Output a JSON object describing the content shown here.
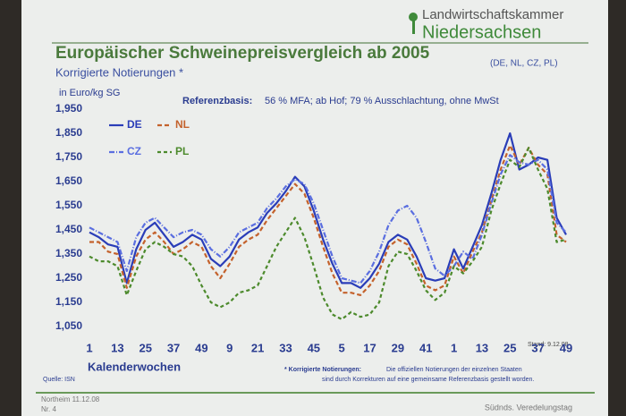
{
  "slide": {
    "logo_line1": "Landwirtschaftskammer",
    "logo_line2": "Niedersachsen",
    "reference_label": "Referenzbasis:",
    "reference_text": "56 % MFA; ab Hof; 79 % Ausschlachtung, ohne MwSt",
    "stand": "Stand: 9.12.08",
    "source": "Quelle: ISN",
    "footnote_label": "* Korrigierte Notierungen:",
    "footnote_line1": "Die offiziellen Notierungen der einzelnen Staaten",
    "footnote_line2": "sind durch Korrekturen auf eine gemeinsame Referenzbasis gestellt worden.",
    "footer_place": "Northeim 11.12.08",
    "footer_number": "Nr. 4",
    "footer_event": "Südnds. Veredelungstag"
  },
  "chart_data": {
    "type": "line",
    "title": "Europäischer Schweinepreisvergleich ab 2005",
    "title_note": "(DE, NL, CZ, PL)",
    "subtitle": "Korrigierte Notierungen *",
    "y_label": "in Euro/kg SG",
    "x_label": "Kalenderwochen",
    "legend": "upper left",
    "x": [
      1,
      5,
      9,
      13,
      17,
      21,
      25,
      29,
      33,
      37,
      41,
      45,
      49,
      53,
      57,
      61,
      65,
      69,
      73,
      77,
      81,
      85,
      89,
      93,
      97,
      101,
      105,
      109,
      113,
      117,
      121,
      125,
      129,
      133,
      137,
      141,
      145,
      149,
      153,
      157,
      161,
      165,
      169,
      173,
      177,
      181,
      185,
      189,
      193,
      197,
      201,
      205
    ],
    "xlim": [
      1,
      205
    ],
    "xticks": [
      1,
      13,
      25,
      37,
      49,
      {
        "value": 61,
        "label": "9"
      },
      {
        "value": 73,
        "label": "21"
      },
      {
        "value": 85,
        "label": "33"
      },
      {
        "value": 97,
        "label": "45"
      },
      {
        "value": 109,
        "label": "5"
      },
      {
        "value": 121,
        "label": "17"
      },
      {
        "value": 133,
        "label": "29"
      },
      {
        "value": 145,
        "label": "41"
      },
      {
        "value": 157,
        "label": "1"
      },
      {
        "value": 169,
        "label": "13"
      },
      {
        "value": 181,
        "label": "25"
      },
      {
        "value": 193,
        "label": "37"
      },
      {
        "value": 205,
        "label": "49"
      }
    ],
    "ylim": [
      1050,
      1950
    ],
    "yticks": [
      {
        "value": 1050,
        "label": "1,050"
      },
      {
        "value": 1150,
        "label": "1,150"
      },
      {
        "value": 1250,
        "label": "1,250"
      },
      {
        "value": 1350,
        "label": "1,350"
      },
      {
        "value": 1450,
        "label": "1,450"
      },
      {
        "value": 1550,
        "label": "1,550"
      },
      {
        "value": 1650,
        "label": "1,650"
      },
      {
        "value": 1750,
        "label": "1,750"
      },
      {
        "value": 1850,
        "label": "1,850"
      },
      {
        "value": 1950,
        "label": "1,950"
      }
    ],
    "series": [
      {
        "name": "DE",
        "color": "#2a3db8",
        "dash": "none",
        "values": [
          1440,
          1420,
          1390,
          1380,
          1230,
          1370,
          1450,
          1480,
          1430,
          1380,
          1400,
          1430,
          1410,
          1330,
          1300,
          1340,
          1410,
          1440,
          1460,
          1520,
          1560,
          1610,
          1670,
          1630,
          1530,
          1410,
          1310,
          1230,
          1230,
          1210,
          1250,
          1310,
          1400,
          1430,
          1410,
          1340,
          1250,
          1240,
          1250,
          1370,
          1290,
          1380,
          1470,
          1600,
          1740,
          1850,
          1700,
          1720,
          1750,
          1740,
          1500,
          1430
        ]
      },
      {
        "name": "NL",
        "color": "#c4622c",
        "dash": "5 3",
        "values": [
          1400,
          1400,
          1360,
          1350,
          1210,
          1340,
          1410,
          1440,
          1400,
          1350,
          1370,
          1400,
          1380,
          1300,
          1250,
          1310,
          1380,
          1410,
          1430,
          1490,
          1540,
          1590,
          1640,
          1600,
          1500,
          1380,
          1270,
          1190,
          1190,
          1180,
          1220,
          1280,
          1380,
          1410,
          1390,
          1310,
          1220,
          1200,
          1220,
          1340,
          1270,
          1360,
          1440,
          1570,
          1700,
          1800,
          1720,
          1790,
          1720,
          1680,
          1430,
          1400
        ]
      },
      {
        "name": "CZ",
        "color": "#5a6ee0",
        "dash": "6 2 1 2",
        "values": [
          1460,
          1440,
          1420,
          1400,
          1280,
          1420,
          1480,
          1500,
          1460,
          1420,
          1440,
          1450,
          1430,
          1370,
          1340,
          1380,
          1440,
          1460,
          1480,
          1540,
          1580,
          1630,
          1660,
          1640,
          1560,
          1450,
          1340,
          1250,
          1240,
          1230,
          1280,
          1360,
          1470,
          1530,
          1550,
          1500,
          1400,
          1290,
          1260,
          1300,
          1360,
          1330,
          1430,
          1560,
          1680,
          1760,
          1730,
          1720,
          1740,
          1700,
          1480,
          1440
        ]
      },
      {
        "name": "PL",
        "color": "#4c8a2c",
        "dash": "4 3",
        "values": [
          1340,
          1320,
          1320,
          1300,
          1180,
          1280,
          1370,
          1400,
          1380,
          1350,
          1340,
          1300,
          1220,
          1150,
          1130,
          1150,
          1190,
          1200,
          1220,
          1300,
          1380,
          1440,
          1500,
          1420,
          1300,
          1170,
          1100,
          1080,
          1110,
          1090,
          1100,
          1150,
          1300,
          1360,
          1350,
          1280,
          1200,
          1160,
          1190,
          1300,
          1270,
          1320,
          1380,
          1530,
          1640,
          1740,
          1710,
          1790,
          1700,
          1620,
          1400,
          1410
        ]
      }
    ]
  }
}
